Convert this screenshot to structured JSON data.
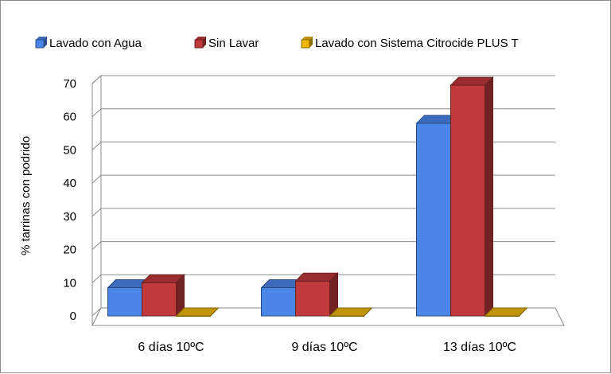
{
  "chart_data": {
    "type": "bar",
    "title": "",
    "xlabel": "",
    "ylabel": "% tarrinas con podrido",
    "ylim": [
      0,
      70
    ],
    "yticks": [
      0,
      10,
      20,
      30,
      40,
      50,
      60,
      70
    ],
    "categories": [
      "6 días 10ºC",
      "9 días 10ºC",
      "13 días 10ºC"
    ],
    "series": [
      {
        "name": "Lavado con Agua",
        "values": [
          8.5,
          8.5,
          58
        ],
        "color": "#4a86e8"
      },
      {
        "name": "Sin Lavar",
        "values": [
          10,
          10.5,
          69.5
        ],
        "color": "#c0393b"
      },
      {
        "name": "Lavado con Sistema Citrocide PLUS T",
        "values": [
          0,
          0,
          0
        ],
        "color": "#f0b800"
      }
    ],
    "legend_position": "top",
    "grid": true,
    "style": "3d"
  }
}
